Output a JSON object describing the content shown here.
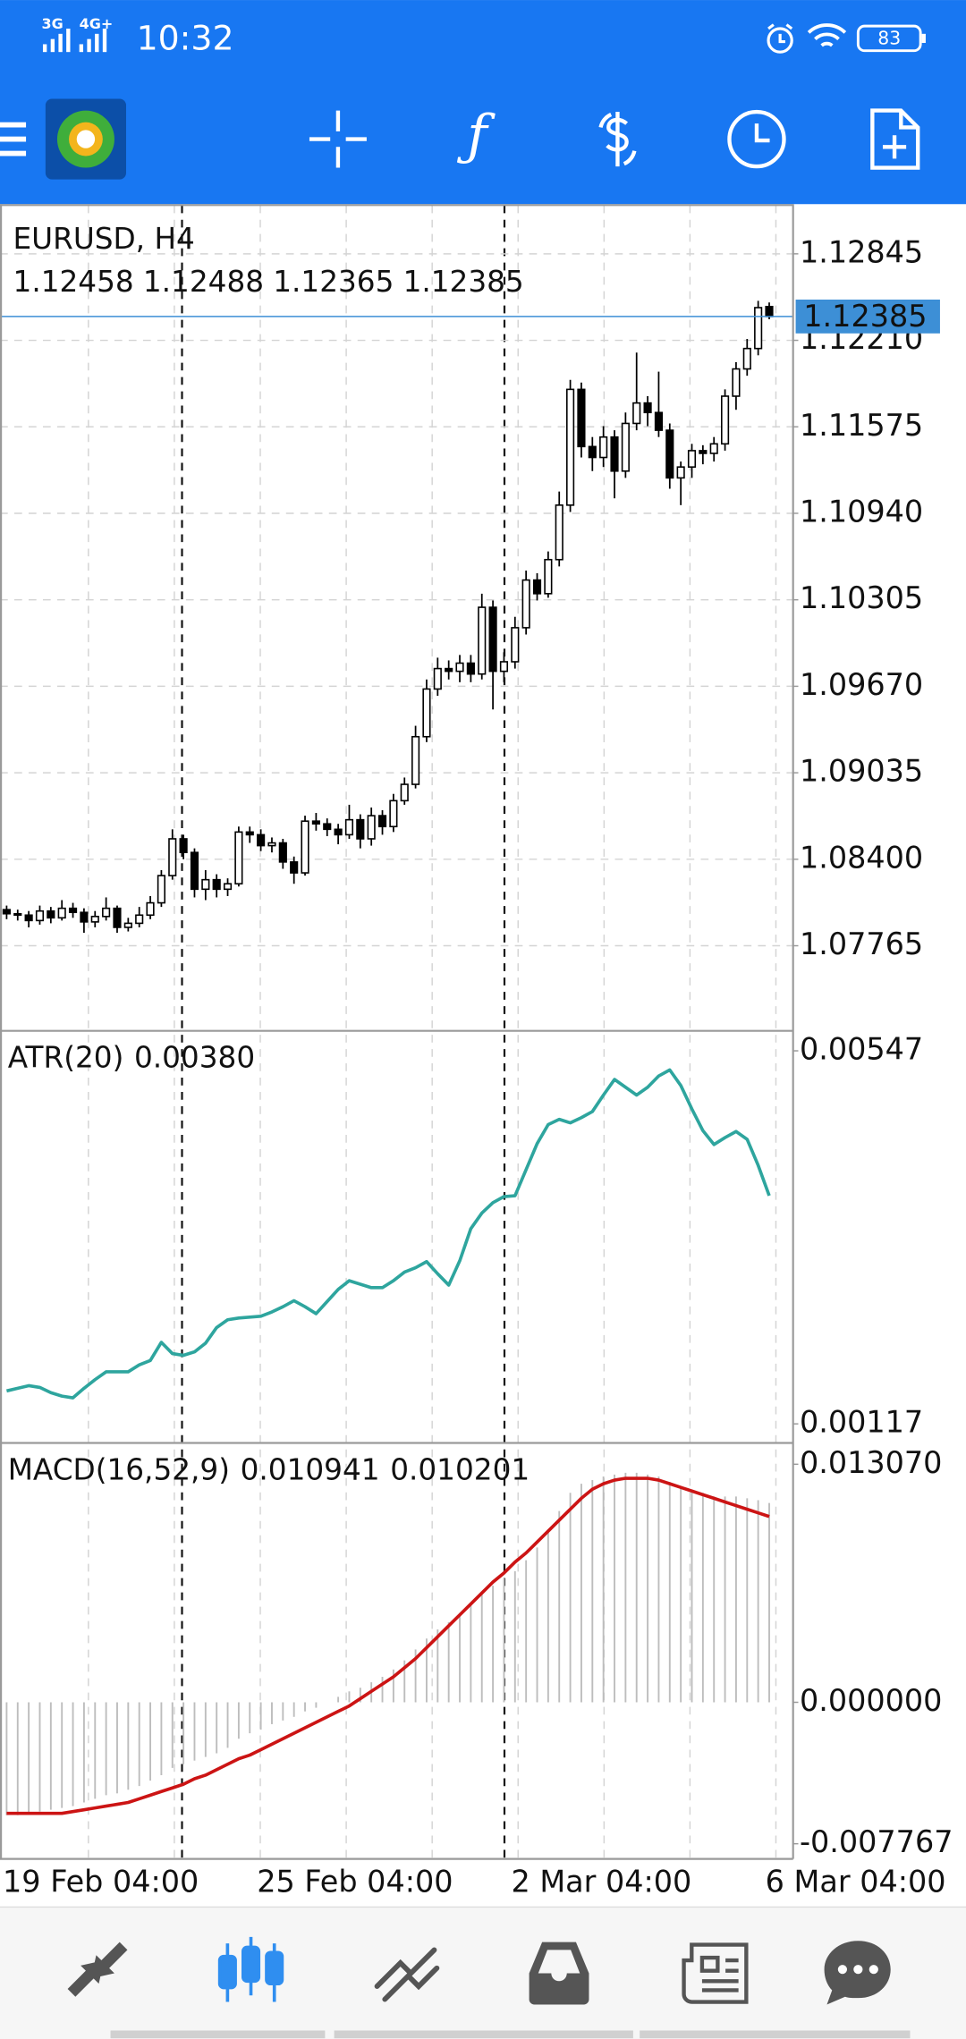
{
  "status_bar": {
    "network_1": "3G",
    "network_2": "4G+",
    "time": "10:32",
    "battery": "83"
  },
  "chart_data": [
    {
      "type": "candlestick",
      "title": "EURUSD, H4",
      "color": "#000000",
      "price_line_color": "#3d8fd6",
      "grid": true,
      "xlim": [
        -0.6,
        70.1
      ],
      "xticks": [
        {
          "value": 0,
          "label": "19 Feb 04:00"
        },
        {
          "value": 23,
          "label": "25 Feb 04:00"
        },
        {
          "value": 46,
          "label": "2 Mar 04:00"
        },
        {
          "value": 69,
          "label": "6 Mar 04:00"
        }
      ],
      "ylim": [
        1.0714,
        1.1321
      ],
      "yticks": [
        1.12845,
        {
          "value": 1.1221,
          "label": "1.12210"
        },
        1.11575,
        {
          "value": 1.1094,
          "label": "1.10940"
        },
        1.10305,
        {
          "value": 1.0967,
          "label": "1.09670"
        },
        1.09035,
        {
          "value": 1.084,
          "label": "1.08400"
        },
        1.07765
      ],
      "candles": [
        [
          1.0803,
          1.0806,
          1.0796,
          1.08
        ],
        [
          1.08,
          1.0803,
          1.0795,
          1.0799
        ],
        [
          1.0799,
          1.0802,
          1.079,
          1.0795
        ],
        [
          1.0795,
          1.0806,
          1.0792,
          1.0802
        ],
        [
          1.0802,
          1.0805,
          1.0793,
          1.0797
        ],
        [
          1.0797,
          1.081,
          1.0795,
          1.0804
        ],
        [
          1.0804,
          1.0808,
          1.0797,
          1.0801
        ],
        [
          1.0801,
          1.0804,
          1.0786,
          1.0794
        ],
        [
          1.0794,
          1.0802,
          1.079,
          1.0798
        ],
        [
          1.0798,
          1.0812,
          1.0795,
          1.0804
        ],
        [
          1.0804,
          1.0806,
          1.0786,
          1.079
        ],
        [
          1.079,
          1.0797,
          1.0787,
          1.0793
        ],
        [
          1.0793,
          1.0805,
          1.079,
          1.0799
        ],
        [
          1.0799,
          1.0813,
          1.0796,
          1.0808
        ],
        [
          1.0808,
          1.0832,
          1.0805,
          1.0828
        ],
        [
          1.0828,
          1.0862,
          1.0825,
          1.0855
        ],
        [
          1.0855,
          1.0858,
          1.084,
          1.0845
        ],
        [
          1.0845,
          1.0848,
          1.0812,
          1.0818
        ],
        [
          1.0818,
          1.0832,
          1.081,
          1.0825
        ],
        [
          1.0825,
          1.0829,
          1.0812,
          1.0818
        ],
        [
          1.0818,
          1.0826,
          1.0813,
          1.0822
        ],
        [
          1.0822,
          1.0864,
          1.082,
          1.086
        ],
        [
          1.086,
          1.0864,
          1.0852,
          1.0858
        ],
        [
          1.0858,
          1.0862,
          1.0846,
          1.085
        ],
        [
          1.085,
          1.0856,
          1.0845,
          1.0852
        ],
        [
          1.0852,
          1.0855,
          1.0833,
          1.0838
        ],
        [
          1.0838,
          1.0842,
          1.0822,
          1.083
        ],
        [
          1.083,
          1.0872,
          1.0828,
          1.0868
        ],
        [
          1.0868,
          1.0874,
          1.0861,
          1.0866
        ],
        [
          1.0866,
          1.087,
          1.0857,
          1.0862
        ],
        [
          1.0862,
          1.0866,
          1.0851,
          1.0858
        ],
        [
          1.0858,
          1.088,
          1.0855,
          1.0869
        ],
        [
          1.0869,
          1.0873,
          1.0848,
          1.0855
        ],
        [
          1.0855,
          1.0878,
          1.085,
          1.0872
        ],
        [
          1.0872,
          1.0876,
          1.0858,
          1.0864
        ],
        [
          1.0864,
          1.0888,
          1.086,
          1.0883
        ],
        [
          1.0883,
          1.09,
          1.088,
          1.0895
        ],
        [
          1.0895,
          1.0938,
          1.0892,
          1.093
        ],
        [
          1.093,
          1.0972,
          1.0926,
          1.0965
        ],
        [
          1.0965,
          1.0988,
          1.096,
          1.098
        ],
        [
          1.098,
          1.0986,
          1.0972,
          1.0978
        ],
        [
          1.0978,
          1.099,
          1.097,
          1.0984
        ],
        [
          1.0984,
          1.099,
          1.097,
          1.0976
        ],
        [
          1.0976,
          1.1035,
          1.0972,
          1.1025
        ],
        [
          1.1025,
          1.103,
          1.095,
          1.0978
        ],
        [
          1.0978,
          1.0992,
          1.097,
          1.0985
        ],
        [
          1.0985,
          1.1018,
          1.098,
          1.101
        ],
        [
          1.101,
          1.1052,
          1.1005,
          1.1045
        ],
        [
          1.1045,
          1.105,
          1.103,
          1.1035
        ],
        [
          1.1035,
          1.1066,
          1.1032,
          1.106
        ],
        [
          1.106,
          1.111,
          1.1055,
          1.11
        ],
        [
          1.11,
          1.1192,
          1.1095,
          1.1185
        ],
        [
          1.1185,
          1.119,
          1.1135,
          1.1143
        ],
        [
          1.1143,
          1.115,
          1.1125,
          1.1135
        ],
        [
          1.1135,
          1.1158,
          1.1128,
          1.115
        ],
        [
          1.115,
          1.1155,
          1.1105,
          1.1125
        ],
        [
          1.1125,
          1.1168,
          1.112,
          1.116
        ],
        [
          1.116,
          1.1212,
          1.1155,
          1.1175
        ],
        [
          1.1175,
          1.118,
          1.1158,
          1.1168
        ],
        [
          1.1168,
          1.1198,
          1.115,
          1.1155
        ],
        [
          1.1155,
          1.116,
          1.1112,
          1.112
        ],
        [
          1.112,
          1.1132,
          1.11,
          1.1128
        ],
        [
          1.1128,
          1.1145,
          1.112,
          1.114
        ],
        [
          1.114,
          1.1144,
          1.113,
          1.1138
        ],
        [
          1.1138,
          1.115,
          1.1132,
          1.1145
        ],
        [
          1.1145,
          1.1185,
          1.114,
          1.118
        ],
        [
          1.118,
          1.1205,
          1.117,
          1.12
        ],
        [
          1.12,
          1.1222,
          1.1195,
          1.1215
        ],
        [
          1.1215,
          1.125,
          1.121,
          1.1245
        ],
        [
          1.12458,
          1.12488,
          1.12365,
          1.12385
        ]
      ]
    },
    {
      "type": "line",
      "title": "ATR(20)",
      "value_label": "0.00380",
      "color": "#2ea59e",
      "ylim": [
        0.00095,
        0.0057
      ],
      "yticks": [
        0.00547,
        0.00117
      ],
      "values": [
        0.00155,
        0.00158,
        0.00161,
        0.00159,
        0.00153,
        0.00149,
        0.00147,
        0.00158,
        0.00168,
        0.00177,
        0.00177,
        0.00177,
        0.00185,
        0.0019,
        0.00211,
        0.00198,
        0.00196,
        0.002,
        0.0021,
        0.00228,
        0.00237,
        0.00239,
        0.0024,
        0.00241,
        0.00246,
        0.00252,
        0.00259,
        0.00252,
        0.00244,
        0.00258,
        0.00272,
        0.00282,
        0.00278,
        0.00274,
        0.00274,
        0.00282,
        0.00292,
        0.00297,
        0.00304,
        0.0029,
        0.00277,
        0.00305,
        0.00342,
        0.0036,
        0.00372,
        0.00379,
        0.0038,
        0.0041,
        0.0044,
        0.00462,
        0.00468,
        0.00464,
        0.0047,
        0.00477,
        0.00496,
        0.00514,
        0.00505,
        0.00496,
        0.00505,
        0.00518,
        0.00525,
        0.00507,
        0.0048,
        0.00455,
        0.00439,
        0.00447,
        0.00454,
        0.00445,
        0.00415,
        0.0038
      ]
    },
    {
      "type": "macd",
      "title": "MACD(16,52,9)",
      "histogram_color": "#bdbdbd",
      "signal_color": "#cc1414",
      "ylim": [
        -0.0086,
        0.01424
      ],
      "yticks": [
        {
          "value": 0.01307,
          "label": "0.013070"
        },
        {
          "value": 0,
          "label": "0.000000"
        },
        -0.007767
      ],
      "histogram": [
        -0.0062,
        -0.0062,
        -0.0061,
        -0.006,
        -0.0059,
        -0.0058,
        -0.0057,
        -0.0055,
        -0.0053,
        -0.0051,
        -0.005,
        -0.0048,
        -0.0046,
        -0.0043,
        -0.004,
        -0.0036,
        -0.0034,
        -0.0032,
        -0.003,
        -0.0028,
        -0.0025,
        -0.002,
        -0.0017,
        -0.0015,
        -0.0012,
        -0.001,
        -0.0008,
        -0.0005,
        -0.0003,
        0,
        0.0003,
        0.0006,
        0.0008,
        0.0011,
        0.0014,
        0.0018,
        0.0023,
        0.0029,
        0.0035,
        0.004,
        0.0044,
        0.0049,
        0.0054,
        0.006,
        0.0064,
        0.0068,
        0.0072,
        0.0078,
        0.0085,
        0.0095,
        0.0105,
        0.0115,
        0.012,
        0.0122,
        0.0124,
        0.0125,
        0.0126,
        0.0126,
        0.0125,
        0.0124,
        0.0121,
        0.0118,
        0.0116,
        0.0115,
        0.0113,
        0.0113,
        0.0113,
        0.0112,
        0.0111,
        0.010941
      ],
      "signal": [
        -0.0061,
        -0.0061,
        -0.0061,
        -0.0061,
        -0.0061,
        -0.0061,
        -0.006,
        -0.0059,
        -0.0058,
        -0.0057,
        -0.0056,
        -0.0055,
        -0.0053,
        -0.0051,
        -0.0049,
        -0.0047,
        -0.0045,
        -0.0042,
        -0.004,
        -0.0037,
        -0.0034,
        -0.0031,
        -0.0029,
        -0.0026,
        -0.0023,
        -0.002,
        -0.0017,
        -0.0014,
        -0.0011,
        -0.0008,
        -0.0005,
        -0.0002,
        0.0002,
        0.0006,
        0.001,
        0.0014,
        0.0019,
        0.0024,
        0.003,
        0.0036,
        0.0042,
        0.0048,
        0.0054,
        0.006,
        0.0066,
        0.0071,
        0.0077,
        0.0082,
        0.0088,
        0.0094,
        0.01,
        0.0106,
        0.0112,
        0.0117,
        0.012,
        0.0122,
        0.0123,
        0.0123,
        0.0123,
        0.0122,
        0.012,
        0.0118,
        0.0116,
        0.0114,
        0.0112,
        0.011,
        0.0108,
        0.0106,
        0.0104,
        0.010201
      ]
    }
  ]
}
